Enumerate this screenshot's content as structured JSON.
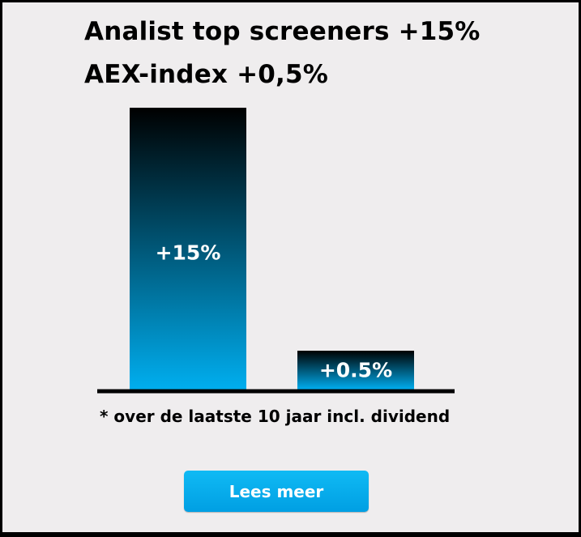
{
  "header": {
    "line1": "Analist top screeners +15%",
    "line2": "AEX-index +0,5%"
  },
  "chart_data": {
    "type": "bar",
    "categories": [
      "Analist top screeners",
      "AEX-index"
    ],
    "values": [
      15,
      0.5
    ],
    "data_labels": [
      "+15%",
      "+0.5%"
    ],
    "ylim": [
      0,
      15
    ],
    "grid": false,
    "colors": {
      "bar_top": "#000000",
      "bar_bottom": "#00aeef",
      "axis": "#000000",
      "label": "#ffffff"
    }
  },
  "footnote": "* over de laatste 10 jaar incl. dividend",
  "cta": {
    "label": "Lees meer",
    "color": "#009fe3"
  }
}
